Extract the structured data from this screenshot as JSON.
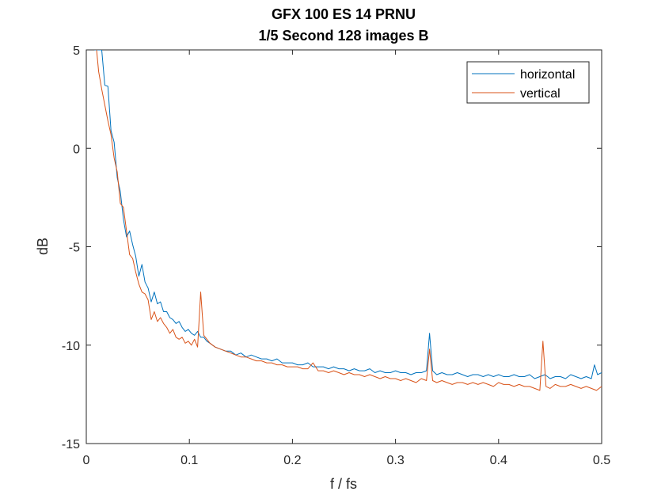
{
  "chart_data": {
    "type": "line",
    "title": "GFX 100 ES 14 PRNU",
    "subtitle": "1/5 Second 128 images B",
    "xlabel": "f / fs",
    "ylabel": "dB",
    "xlim": [
      0,
      0.5
    ],
    "ylim": [
      -15,
      5
    ],
    "xticks": [
      0,
      0.1,
      0.2,
      0.3,
      0.4,
      0.5
    ],
    "xtick_labels": [
      "0",
      "0.1",
      "0.2",
      "0.3",
      "0.4",
      "0.5"
    ],
    "yticks": [
      -15,
      -10,
      -5,
      0,
      5
    ],
    "ytick_labels": [
      "-15",
      "-10",
      "-5",
      "0",
      "5"
    ],
    "grid": false,
    "legend_position": "top-right",
    "series": [
      {
        "name": "horizontal",
        "color": "#0072BD",
        "points": [
          [
            0.008,
            5.0
          ],
          [
            0.015,
            5.0
          ],
          [
            0.018,
            3.2
          ],
          [
            0.021,
            3.15
          ],
          [
            0.024,
            0.9
          ],
          [
            0.027,
            0.3
          ],
          [
            0.03,
            -1.5
          ],
          [
            0.033,
            -2.2
          ],
          [
            0.036,
            -3.6
          ],
          [
            0.039,
            -4.5
          ],
          [
            0.042,
            -4.2
          ],
          [
            0.045,
            -4.9
          ],
          [
            0.048,
            -5.5
          ],
          [
            0.051,
            -6.5
          ],
          [
            0.054,
            -5.9
          ],
          [
            0.057,
            -6.8
          ],
          [
            0.06,
            -7.1
          ],
          [
            0.063,
            -7.8
          ],
          [
            0.066,
            -7.3
          ],
          [
            0.069,
            -7.9
          ],
          [
            0.072,
            -7.8
          ],
          [
            0.075,
            -8.3
          ],
          [
            0.078,
            -8.3
          ],
          [
            0.081,
            -8.6
          ],
          [
            0.084,
            -8.7
          ],
          [
            0.087,
            -8.9
          ],
          [
            0.09,
            -8.8
          ],
          [
            0.093,
            -9.1
          ],
          [
            0.096,
            -9.3
          ],
          [
            0.099,
            -9.2
          ],
          [
            0.102,
            -9.4
          ],
          [
            0.105,
            -9.5
          ],
          [
            0.108,
            -9.3
          ],
          [
            0.111,
            -9.6
          ],
          [
            0.114,
            -9.6
          ],
          [
            0.117,
            -9.8
          ],
          [
            0.12,
            -9.9
          ],
          [
            0.125,
            -10.1
          ],
          [
            0.13,
            -10.2
          ],
          [
            0.135,
            -10.3
          ],
          [
            0.14,
            -10.3
          ],
          [
            0.145,
            -10.5
          ],
          [
            0.15,
            -10.4
          ],
          [
            0.155,
            -10.6
          ],
          [
            0.16,
            -10.5
          ],
          [
            0.165,
            -10.6
          ],
          [
            0.17,
            -10.7
          ],
          [
            0.175,
            -10.7
          ],
          [
            0.18,
            -10.8
          ],
          [
            0.185,
            -10.7
          ],
          [
            0.19,
            -10.9
          ],
          [
            0.195,
            -10.9
          ],
          [
            0.2,
            -10.9
          ],
          [
            0.205,
            -11.0
          ],
          [
            0.21,
            -11.0
          ],
          [
            0.215,
            -10.9
          ],
          [
            0.22,
            -11.1
          ],
          [
            0.225,
            -11.1
          ],
          [
            0.23,
            -11.1
          ],
          [
            0.235,
            -11.2
          ],
          [
            0.24,
            -11.1
          ],
          [
            0.245,
            -11.2
          ],
          [
            0.25,
            -11.2
          ],
          [
            0.255,
            -11.3
          ],
          [
            0.26,
            -11.2
          ],
          [
            0.265,
            -11.3
          ],
          [
            0.27,
            -11.3
          ],
          [
            0.275,
            -11.2
          ],
          [
            0.28,
            -11.4
          ],
          [
            0.285,
            -11.3
          ],
          [
            0.29,
            -11.4
          ],
          [
            0.295,
            -11.4
          ],
          [
            0.3,
            -11.3
          ],
          [
            0.305,
            -11.4
          ],
          [
            0.31,
            -11.4
          ],
          [
            0.315,
            -11.5
          ],
          [
            0.32,
            -11.4
          ],
          [
            0.325,
            -11.4
          ],
          [
            0.33,
            -11.3
          ],
          [
            0.333,
            -9.4
          ],
          [
            0.336,
            -11.3
          ],
          [
            0.34,
            -11.5
          ],
          [
            0.345,
            -11.4
          ],
          [
            0.35,
            -11.5
          ],
          [
            0.355,
            -11.5
          ],
          [
            0.36,
            -11.4
          ],
          [
            0.365,
            -11.5
          ],
          [
            0.37,
            -11.6
          ],
          [
            0.375,
            -11.5
          ],
          [
            0.38,
            -11.5
          ],
          [
            0.385,
            -11.6
          ],
          [
            0.39,
            -11.5
          ],
          [
            0.395,
            -11.6
          ],
          [
            0.4,
            -11.5
          ],
          [
            0.405,
            -11.6
          ],
          [
            0.41,
            -11.6
          ],
          [
            0.415,
            -11.5
          ],
          [
            0.42,
            -11.6
          ],
          [
            0.425,
            -11.6
          ],
          [
            0.43,
            -11.5
          ],
          [
            0.435,
            -11.7
          ],
          [
            0.44,
            -11.6
          ],
          [
            0.445,
            -11.5
          ],
          [
            0.45,
            -11.7
          ],
          [
            0.455,
            -11.6
          ],
          [
            0.46,
            -11.6
          ],
          [
            0.465,
            -11.7
          ],
          [
            0.47,
            -11.5
          ],
          [
            0.475,
            -11.6
          ],
          [
            0.48,
            -11.7
          ],
          [
            0.485,
            -11.6
          ],
          [
            0.49,
            -11.7
          ],
          [
            0.493,
            -11.0
          ],
          [
            0.496,
            -11.5
          ],
          [
            0.5,
            -11.4
          ]
        ]
      },
      {
        "name": "vertical",
        "color": "#D95319",
        "points": [
          [
            0.01,
            5.0
          ],
          [
            0.012,
            3.9
          ],
          [
            0.015,
            3.0
          ],
          [
            0.018,
            2.2
          ],
          [
            0.021,
            1.4
          ],
          [
            0.024,
            0.7
          ],
          [
            0.027,
            -0.5
          ],
          [
            0.03,
            -1.2
          ],
          [
            0.033,
            -2.8
          ],
          [
            0.036,
            -3.0
          ],
          [
            0.039,
            -4.2
          ],
          [
            0.042,
            -5.4
          ],
          [
            0.045,
            -5.6
          ],
          [
            0.048,
            -6.3
          ],
          [
            0.051,
            -6.9
          ],
          [
            0.054,
            -7.3
          ],
          [
            0.057,
            -7.4
          ],
          [
            0.06,
            -7.7
          ],
          [
            0.063,
            -8.7
          ],
          [
            0.066,
            -8.3
          ],
          [
            0.069,
            -8.8
          ],
          [
            0.072,
            -8.6
          ],
          [
            0.075,
            -8.9
          ],
          [
            0.078,
            -9.1
          ],
          [
            0.081,
            -9.4
          ],
          [
            0.084,
            -9.2
          ],
          [
            0.087,
            -9.6
          ],
          [
            0.09,
            -9.7
          ],
          [
            0.093,
            -9.6
          ],
          [
            0.096,
            -9.9
          ],
          [
            0.099,
            -9.8
          ],
          [
            0.102,
            -10.0
          ],
          [
            0.105,
            -9.7
          ],
          [
            0.108,
            -10.1
          ],
          [
            0.111,
            -7.3
          ],
          [
            0.114,
            -9.5
          ],
          [
            0.117,
            -9.7
          ],
          [
            0.12,
            -9.9
          ],
          [
            0.125,
            -10.1
          ],
          [
            0.13,
            -10.2
          ],
          [
            0.135,
            -10.3
          ],
          [
            0.14,
            -10.4
          ],
          [
            0.145,
            -10.5
          ],
          [
            0.15,
            -10.6
          ],
          [
            0.155,
            -10.6
          ],
          [
            0.16,
            -10.7
          ],
          [
            0.165,
            -10.8
          ],
          [
            0.17,
            -10.8
          ],
          [
            0.175,
            -10.9
          ],
          [
            0.18,
            -10.9
          ],
          [
            0.185,
            -11.0
          ],
          [
            0.19,
            -11.0
          ],
          [
            0.195,
            -11.1
          ],
          [
            0.2,
            -11.1
          ],
          [
            0.205,
            -11.1
          ],
          [
            0.21,
            -11.2
          ],
          [
            0.215,
            -11.2
          ],
          [
            0.22,
            -10.9
          ],
          [
            0.225,
            -11.3
          ],
          [
            0.23,
            -11.3
          ],
          [
            0.235,
            -11.4
          ],
          [
            0.24,
            -11.3
          ],
          [
            0.245,
            -11.4
          ],
          [
            0.25,
            -11.5
          ],
          [
            0.255,
            -11.4
          ],
          [
            0.26,
            -11.5
          ],
          [
            0.265,
            -11.5
          ],
          [
            0.27,
            -11.6
          ],
          [
            0.275,
            -11.5
          ],
          [
            0.28,
            -11.6
          ],
          [
            0.285,
            -11.7
          ],
          [
            0.29,
            -11.6
          ],
          [
            0.295,
            -11.7
          ],
          [
            0.3,
            -11.7
          ],
          [
            0.305,
            -11.8
          ],
          [
            0.31,
            -11.7
          ],
          [
            0.315,
            -11.8
          ],
          [
            0.32,
            -11.9
          ],
          [
            0.325,
            -11.7
          ],
          [
            0.33,
            -11.8
          ],
          [
            0.333,
            -10.2
          ],
          [
            0.336,
            -11.8
          ],
          [
            0.34,
            -11.9
          ],
          [
            0.345,
            -11.8
          ],
          [
            0.35,
            -11.9
          ],
          [
            0.355,
            -12.0
          ],
          [
            0.36,
            -11.9
          ],
          [
            0.365,
            -11.9
          ],
          [
            0.37,
            -12.0
          ],
          [
            0.375,
            -11.9
          ],
          [
            0.38,
            -12.0
          ],
          [
            0.385,
            -11.9
          ],
          [
            0.39,
            -12.0
          ],
          [
            0.395,
            -12.1
          ],
          [
            0.4,
            -11.9
          ],
          [
            0.405,
            -12.0
          ],
          [
            0.41,
            -12.0
          ],
          [
            0.415,
            -12.1
          ],
          [
            0.42,
            -12.0
          ],
          [
            0.425,
            -12.1
          ],
          [
            0.43,
            -12.1
          ],
          [
            0.435,
            -12.2
          ],
          [
            0.44,
            -12.3
          ],
          [
            0.443,
            -9.8
          ],
          [
            0.446,
            -12.1
          ],
          [
            0.45,
            -12.2
          ],
          [
            0.455,
            -12.0
          ],
          [
            0.46,
            -12.1
          ],
          [
            0.465,
            -12.1
          ],
          [
            0.47,
            -12.0
          ],
          [
            0.475,
            -12.1
          ],
          [
            0.48,
            -12.2
          ],
          [
            0.485,
            -12.1
          ],
          [
            0.49,
            -12.2
          ],
          [
            0.495,
            -12.3
          ],
          [
            0.5,
            -12.1
          ]
        ]
      }
    ]
  }
}
